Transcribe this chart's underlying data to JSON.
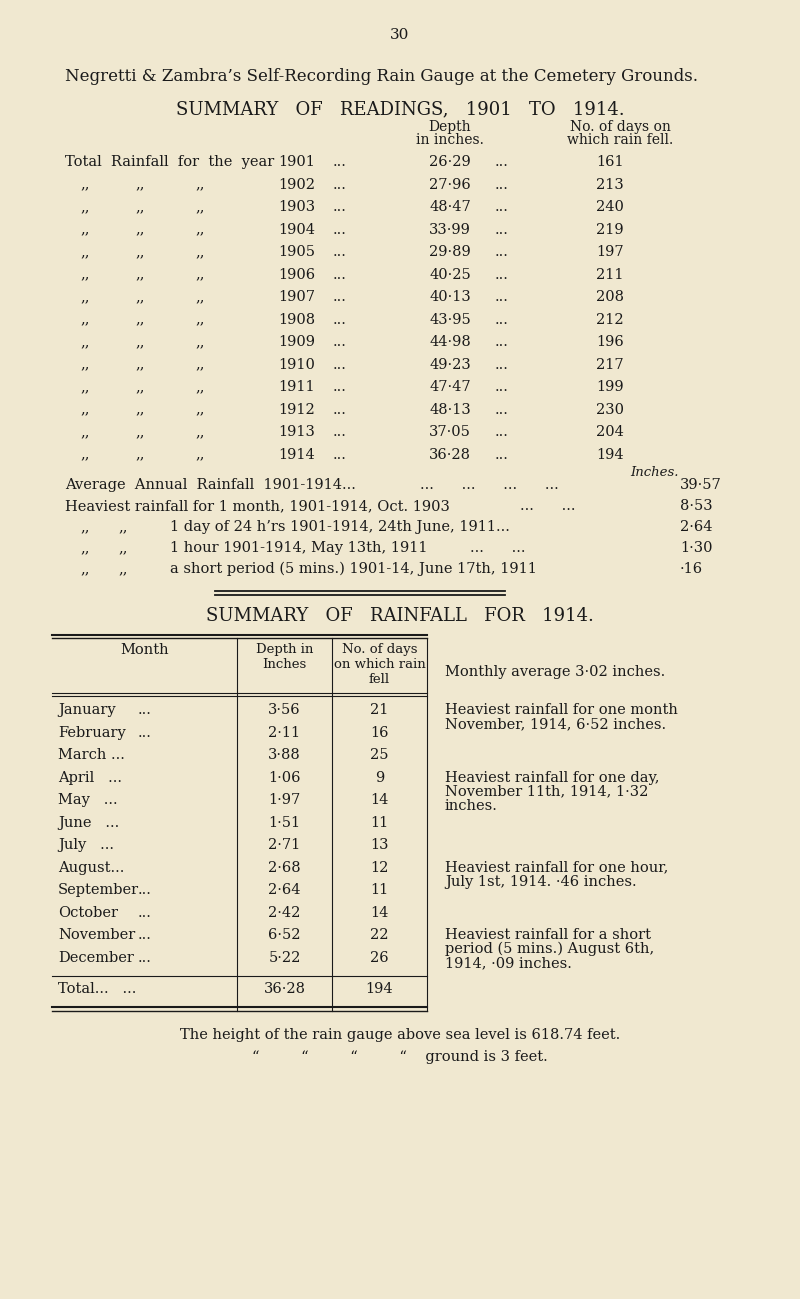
{
  "bg_color": "#f0e8d0",
  "text_color": "#1a1a1a",
  "page_number": "30",
  "title1": "Negretti & Zambra’s Self-Recording Rain Gauge at the Cemetery Grounds.",
  "title2": "SUMMARY   OF   READINGS,   1901   TO   1914.",
  "yearly_data": [
    {
      "year": "1901",
      "depth": "26·29",
      "days": "161",
      "first": true
    },
    {
      "year": "1902",
      "depth": "27·96",
      "days": "213",
      "first": false
    },
    {
      "year": "1903",
      "depth": "48·47",
      "days": "240",
      "first": false
    },
    {
      "year": "1904",
      "depth": "33·99",
      "days": "219",
      "first": false
    },
    {
      "year": "1905",
      "depth": "29·89",
      "days": "197",
      "first": false
    },
    {
      "year": "1906",
      "depth": "40·25",
      "days": "211",
      "first": false
    },
    {
      "year": "1907",
      "depth": "40·13",
      "days": "208",
      "first": false
    },
    {
      "year": "1908",
      "depth": "43·95",
      "days": "212",
      "first": false
    },
    {
      "year": "1909",
      "depth": "44·98",
      "days": "196",
      "first": false
    },
    {
      "year": "1910",
      "depth": "49·23",
      "days": "217",
      "first": false
    },
    {
      "year": "1911",
      "depth": "47·47",
      "days": "199",
      "first": false
    },
    {
      "year": "1912",
      "depth": "48·13",
      "days": "230",
      "first": false
    },
    {
      "year": "1913",
      "depth": "37·05",
      "days": "204",
      "first": false
    },
    {
      "year": "1914",
      "depth": "36·28",
      "days": "194",
      "first": false
    }
  ],
  "monthly_data": [
    {
      "month": "January",
      "depth": "3·56",
      "days": "21"
    },
    {
      "month": "February",
      "depth": "2·11",
      "days": "16"
    },
    {
      "month": "March ...",
      "depth": "3·88",
      "days": "25"
    },
    {
      "month": "April   ...",
      "depth": "1·06",
      "days": "9"
    },
    {
      "month": "May   ...",
      "depth": "1·97",
      "days": "14"
    },
    {
      "month": "June   ...",
      "depth": "1·51",
      "days": "11"
    },
    {
      "month": "July   ...",
      "depth": "2·71",
      "days": "13"
    },
    {
      "month": "August...",
      "depth": "2·68",
      "days": "12"
    },
    {
      "month": "September",
      "depth": "2·64",
      "days": "11"
    },
    {
      "month": "October",
      "depth": "2·42",
      "days": "14"
    },
    {
      "month": "November",
      "depth": "6·52",
      "days": "22"
    },
    {
      "month": "December",
      "depth": "5·22",
      "days": "26"
    }
  ],
  "total_depth": "36·28",
  "total_days": "194",
  "footer1": "The height of the rain gauge above sea level is 618.74 feet.",
  "footer2": "“         “         “         “    ground is 3 feet."
}
